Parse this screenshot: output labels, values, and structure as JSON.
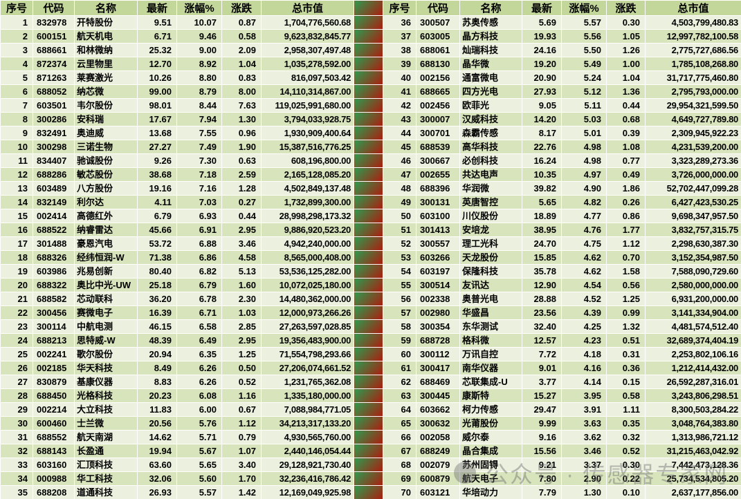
{
  "colors": {
    "header_bg": "#C4D79B",
    "row_light": "#EBF1DE",
    "row_dark": "#D8E4BC",
    "grid_line": "#FFFFFF",
    "text": "#000000",
    "trend_gradient_green": "#2E9A4F",
    "trend_gradient_red": "#AD1C0D",
    "watermark_gray": "#707070"
  },
  "table": {
    "headers": [
      "序号",
      "代码",
      "名称",
      "最新",
      "涨幅%",
      "涨跌",
      "总市值"
    ],
    "left_rows": [
      [
        1,
        "832978",
        "开特股份",
        "9.51",
        "10.07",
        "0.87",
        "1,704,776,560.68"
      ],
      [
        2,
        "600151",
        "航天机电",
        "6.71",
        "9.46",
        "0.58",
        "9,623,832,845.77"
      ],
      [
        3,
        "688661",
        "和林微纳",
        "25.32",
        "9.00",
        "2.09",
        "2,958,307,497.48"
      ],
      [
        4,
        "872374",
        "云里物里",
        "12.70",
        "8.92",
        "1.04",
        "1,035,278,592.00"
      ],
      [
        5,
        "871263",
        "莱赛激光",
        "10.26",
        "8.80",
        "0.83",
        "816,097,503.42"
      ],
      [
        6,
        "688052",
        "纳芯微",
        "99.00",
        "8.79",
        "8.00",
        "14,110,314,867.00"
      ],
      [
        7,
        "603501",
        "韦尔股份",
        "98.01",
        "8.44",
        "7.63",
        "119,025,991,680.00"
      ],
      [
        8,
        "300286",
        "安科瑞",
        "17.67",
        "7.94",
        "1.30",
        "3,794,033,928.75"
      ],
      [
        9,
        "832491",
        "奥迪威",
        "13.68",
        "7.55",
        "0.96",
        "1,930,909,400.64"
      ],
      [
        10,
        "300298",
        "三诺生物",
        "27.27",
        "7.49",
        "1.90",
        "15,387,516,776.25"
      ],
      [
        11,
        "834407",
        "驰诚股份",
        "9.26",
        "7.30",
        "0.63",
        "608,196,800.00"
      ],
      [
        12,
        "688286",
        "敏芯股份",
        "38.68",
        "7.18",
        "2.59",
        "2,165,128,085.20"
      ],
      [
        13,
        "603489",
        "八方股份",
        "19.16",
        "7.16",
        "1.28",
        "4,502,849,137.48"
      ],
      [
        14,
        "832149",
        "利尔达",
        "4.11",
        "7.03",
        "0.27",
        "1,732,899,300.00"
      ],
      [
        15,
        "002414",
        "高德红外",
        "6.79",
        "6.93",
        "0.44",
        "28,998,298,173.32"
      ],
      [
        16,
        "688522",
        "纳睿雷达",
        "45.66",
        "6.91",
        "2.95",
        "9,886,920,523.20"
      ],
      [
        17,
        "301488",
        "豪恩汽电",
        "53.72",
        "6.88",
        "3.46",
        "4,942,240,000.00"
      ],
      [
        18,
        "688326",
        "经纬恒润-W",
        "71.38",
        "6.86",
        "4.58",
        "8,565,000,408.00"
      ],
      [
        19,
        "603986",
        "兆易创新",
        "80.40",
        "6.82",
        "5.13",
        "53,536,125,282.00"
      ],
      [
        20,
        "688322",
        "奥比中光-UW",
        "25.18",
        "6.79",
        "1.60",
        "10,072,025,180.00"
      ],
      [
        21,
        "688582",
        "芯动联科",
        "36.20",
        "6.78",
        "2.30",
        "14,480,362,000.00"
      ],
      [
        22,
        "300456",
        "赛微电子",
        "16.39",
        "6.71",
        "1.03",
        "12,000,973,266.26"
      ],
      [
        23,
        "300114",
        "中航电测",
        "46.15",
        "6.58",
        "2.85",
        "27,263,597,028.85"
      ],
      [
        24,
        "688213",
        "思特威-W",
        "48.39",
        "6.49",
        "2.95",
        "19,356,483,900.00"
      ],
      [
        25,
        "002241",
        "歌尔股份",
        "20.94",
        "6.35",
        "1.25",
        "71,554,798,293.66"
      ],
      [
        26,
        "002185",
        "华天科技",
        "8.49",
        "6.26",
        "0.50",
        "27,206,074,661.52"
      ],
      [
        27,
        "830879",
        "基康仪器",
        "8.83",
        "6.26",
        "0.52",
        "1,231,765,362.08"
      ],
      [
        28,
        "688450",
        "光格科技",
        "20.23",
        "6.08",
        "1.16",
        "1,335,180,000.00"
      ],
      [
        29,
        "002214",
        "大立科技",
        "11.83",
        "6.00",
        "0.67",
        "7,088,984,771.05"
      ],
      [
        30,
        "600460",
        "士兰微",
        "20.56",
        "5.76",
        "1.12",
        "34,213,317,133.20"
      ],
      [
        31,
        "688552",
        "航天南湖",
        "14.62",
        "5.71",
        "0.79",
        "4,930,565,760.00"
      ],
      [
        32,
        "688143",
        "长盈通",
        "19.94",
        "5.67",
        "1.07",
        "2,440,146,054.44"
      ],
      [
        33,
        "603160",
        "汇顶科技",
        "63.60",
        "5.65",
        "3.40",
        "29,128,921,730.40"
      ],
      [
        34,
        "000988",
        "华工科技",
        "32.06",
        "5.60",
        "1.70",
        "32,236,416,786.42"
      ],
      [
        35,
        "688208",
        "道通科技",
        "26.93",
        "5.57",
        "1.42",
        "12,169,049,925.98"
      ]
    ],
    "right_rows": [
      [
        36,
        "300507",
        "苏奥传感",
        "5.69",
        "5.57",
        "0.30",
        "4,503,799,480.83"
      ],
      [
        37,
        "603005",
        "晶方科技",
        "19.93",
        "5.56",
        "1.05",
        "12,997,782,100.58"
      ],
      [
        38,
        "688061",
        "灿瑞科技",
        "24.16",
        "5.50",
        "1.26",
        "2,775,727,686.56"
      ],
      [
        39,
        "688130",
        "晶华微",
        "19.20",
        "5.49",
        "1.00",
        "1,785,108,268.80"
      ],
      [
        40,
        "002156",
        "通富微电",
        "20.90",
        "5.24",
        "1.04",
        "31,717,775,460.80"
      ],
      [
        41,
        "688665",
        "四方光电",
        "27.93",
        "5.12",
        "1.36",
        "2,795,793,000.00"
      ],
      [
        42,
        "002456",
        "欧菲光",
        "9.05",
        "5.11",
        "0.44",
        "29,954,321,599.50"
      ],
      [
        43,
        "300007",
        "汉威科技",
        "14.20",
        "5.03",
        "0.68",
        "4,649,727,789.80"
      ],
      [
        44,
        "300701",
        "森霸传感",
        "8.17",
        "5.01",
        "0.39",
        "2,309,945,922.23"
      ],
      [
        45,
        "688539",
        "高华科技",
        "22.76",
        "4.98",
        "1.08",
        "4,231,539,200.00"
      ],
      [
        46,
        "300667",
        "必创科技",
        "16.24",
        "4.98",
        "0.77",
        "3,323,289,273.36"
      ],
      [
        47,
        "002655",
        "共达电声",
        "10.35",
        "4.97",
        "0.49",
        "3,726,000,000.00"
      ],
      [
        48,
        "688396",
        "华润微",
        "39.82",
        "4.90",
        "1.86",
        "52,702,447,099.28"
      ],
      [
        49,
        "300131",
        "英唐智控",
        "5.65",
        "4.82",
        "0.26",
        "6,427,423,530.25"
      ],
      [
        50,
        "603100",
        "川仪股份",
        "18.89",
        "4.77",
        "0.86",
        "9,698,347,957.50"
      ],
      [
        51,
        "301413",
        "安培龙",
        "38.95",
        "4.76",
        "1.77",
        "3,832,757,315.75"
      ],
      [
        52,
        "300557",
        "理工光科",
        "24.70",
        "4.75",
        "1.12",
        "2,298,630,387.30"
      ],
      [
        53,
        "603266",
        "天龙股份",
        "15.85",
        "4.62",
        "0.70",
        "3,152,354,987.50"
      ],
      [
        54,
        "603197",
        "保隆科技",
        "35.78",
        "4.62",
        "1.58",
        "7,588,090,729.60"
      ],
      [
        55,
        "300514",
        "友讯达",
        "12.90",
        "4.54",
        "0.56",
        "2,580,000,000.00"
      ],
      [
        56,
        "002338",
        "奥普光电",
        "28.88",
        "4.52",
        "1.25",
        "6,931,200,000.00"
      ],
      [
        57,
        "002980",
        "华盛昌",
        "23.56",
        "4.39",
        "0.99",
        "3,141,334,904.00"
      ],
      [
        58,
        "300354",
        "东华测试",
        "32.40",
        "4.25",
        "1.32",
        "4,481,574,512.40"
      ],
      [
        59,
        "688728",
        "格科微",
        "12.57",
        "4.23",
        "0.51",
        "32,689,374,404.19"
      ],
      [
        60,
        "300112",
        "万讯自控",
        "7.72",
        "4.18",
        "0.31",
        "2,253,802,106.16"
      ],
      [
        61,
        "300417",
        "南华仪器",
        "9.01",
        "4.16",
        "0.36",
        "1,212,414,432.00"
      ],
      [
        62,
        "688469",
        "芯联集成-U",
        "3.77",
        "4.14",
        "0.15",
        "26,592,287,316.01"
      ],
      [
        63,
        "300445",
        "康斯特",
        "15.27",
        "3.95",
        "0.58",
        "3,243,806,298.51"
      ],
      [
        64,
        "603662",
        "柯力传感",
        "29.47",
        "3.91",
        "1.11",
        "8,300,503,284.22"
      ],
      [
        65,
        "300632",
        "光莆股份",
        "9.99",
        "3.63",
        "0.35",
        "3,048,764,383.80"
      ],
      [
        66,
        "002058",
        "威尔泰",
        "9.16",
        "3.62",
        "0.32",
        "1,313,986,721.12"
      ],
      [
        67,
        "688249",
        "晶合集成",
        "15.56",
        "3.46",
        "0.52",
        "31,215,463,042.92"
      ],
      [
        68,
        "002079",
        "苏州固锝",
        "9.21",
        "3.37",
        "0.30",
        "7,442,473,128.36"
      ],
      [
        69,
        "600879",
        "航天电子",
        "7.80",
        "2.90",
        "0.22",
        "25,734,534,805.20"
      ],
      [
        70,
        "603121",
        "华培动力",
        "7.79",
        "1.30",
        "0.10",
        "2,637,177,856.00"
      ]
    ]
  },
  "watermark": {
    "logo_icon": "wechat-official-account-logo",
    "text": "公众号 · 传感器专家网"
  }
}
